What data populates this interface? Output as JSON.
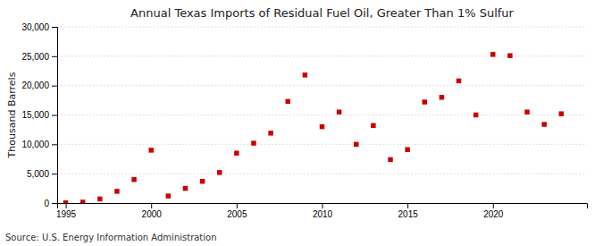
{
  "chart_data": {
    "type": "scatter",
    "title": "Annual Texas Imports of Residual Fuel Oil, Greater Than 1% Sulfur",
    "ylabel": "Thousand Barrels",
    "annotation": "Source: U.S. Energy Information Administration",
    "x": [
      1995,
      1996,
      1997,
      1998,
      1999,
      2000,
      2001,
      2002,
      2003,
      2004,
      2005,
      2006,
      2007,
      2008,
      2009,
      2010,
      2011,
      2012,
      2013,
      2014,
      2015,
      2016,
      2017,
      2018,
      2019,
      2020,
      2021,
      2022,
      2023,
      2024
    ],
    "values": [
      50,
      150,
      700,
      2000,
      4000,
      9000,
      1200,
      2500,
      3700,
      5200,
      8500,
      10200,
      11900,
      17300,
      21800,
      13000,
      15500,
      10000,
      13200,
      7400,
      9100,
      17200,
      18000,
      20800,
      15000,
      25300,
      25100,
      15500,
      13400,
      15200
    ],
    "color": "#cc0000",
    "marker": "square",
    "xlim": [
      1994.5,
      2025.5
    ],
    "xticks": [
      1995,
      2000,
      2005,
      2010,
      2015,
      2020
    ],
    "ylim": [
      0,
      30001
    ],
    "yticks": [
      0,
      {
        "value": 5000,
        "label": "5,000"
      },
      {
        "value": 10000,
        "label": "10,000"
      },
      {
        "value": 15000,
        "label": "15,000"
      },
      {
        "value": 20000,
        "label": "20,000"
      },
      {
        "value": 25000,
        "label": "25,000"
      },
      {
        "value": 30000,
        "label": "30,000"
      }
    ],
    "grid": "y"
  }
}
